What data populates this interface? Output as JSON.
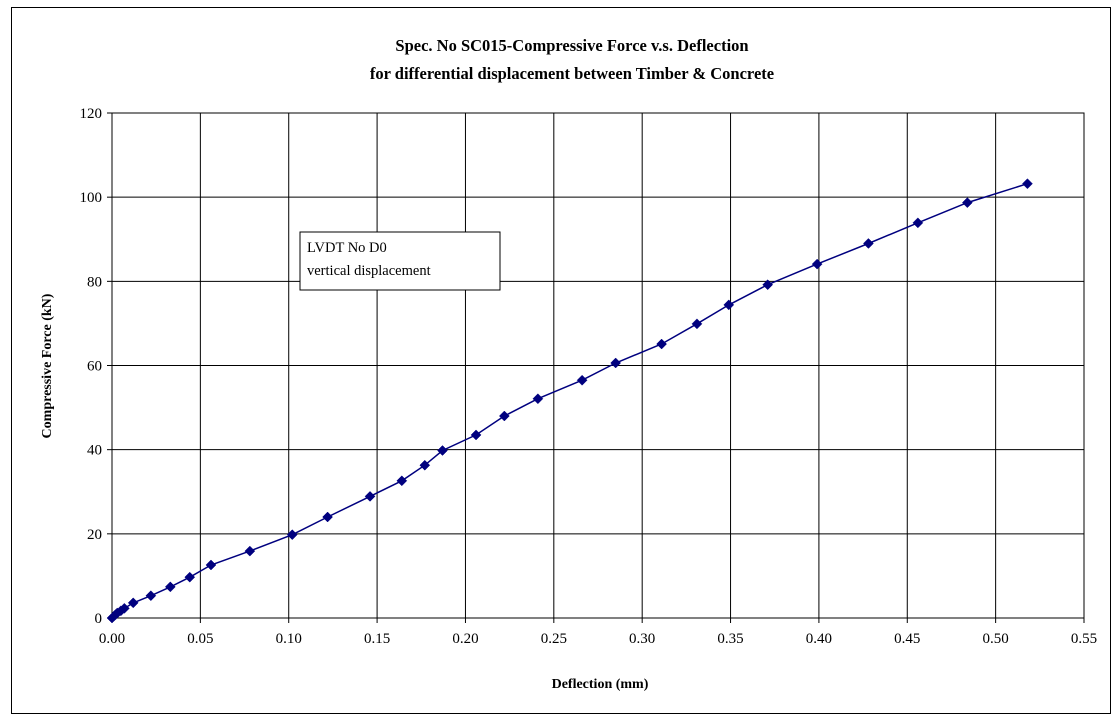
{
  "chart_data": {
    "type": "scatter",
    "title_line1": "Spec. No SC015-Compressive Force v.s. Deflection",
    "title_line2": "for differential displacement between Timber & Concrete",
    "xlabel": "Deflection (mm)",
    "ylabel": "Compressive Force (kN)",
    "xlim": [
      0,
      0.55
    ],
    "ylim": [
      0,
      120
    ],
    "x_ticks": [
      "0.00",
      "0.05",
      "0.10",
      "0.15",
      "0.20",
      "0.25",
      "0.30",
      "0.35",
      "0.40",
      "0.45",
      "0.50",
      "0.55"
    ],
    "y_ticks": [
      "0",
      "20",
      "40",
      "60",
      "80",
      "100",
      "120"
    ],
    "grid": true,
    "legend": "none",
    "annotation": {
      "line1": "LVDT No D0",
      "line2": "vertical displacement",
      "anchor_x": 0.077,
      "anchor_y": 91
    },
    "series": [
      {
        "color": "#00007f",
        "marker": "diamond",
        "points": [
          [
            0.0,
            0.0
          ],
          [
            0.001,
            0.4
          ],
          [
            0.002,
            0.8
          ],
          [
            0.003,
            1.2
          ],
          [
            0.005,
            1.7
          ],
          [
            0.007,
            2.3
          ],
          [
            0.012,
            3.6
          ],
          [
            0.022,
            5.3
          ],
          [
            0.033,
            7.4
          ],
          [
            0.044,
            9.7
          ],
          [
            0.056,
            12.6
          ],
          [
            0.078,
            15.9
          ],
          [
            0.102,
            19.8
          ],
          [
            0.122,
            24.0
          ],
          [
            0.146,
            28.9
          ],
          [
            0.164,
            32.6
          ],
          [
            0.177,
            36.3
          ],
          [
            0.187,
            39.8
          ],
          [
            0.206,
            43.5
          ],
          [
            0.222,
            48.0
          ],
          [
            0.241,
            52.1
          ],
          [
            0.266,
            56.5
          ],
          [
            0.285,
            60.6
          ],
          [
            0.311,
            65.1
          ],
          [
            0.331,
            69.9
          ],
          [
            0.349,
            74.4
          ],
          [
            0.371,
            79.2
          ],
          [
            0.399,
            84.1
          ],
          [
            0.428,
            89.0
          ],
          [
            0.456,
            93.9
          ],
          [
            0.484,
            98.7
          ],
          [
            0.518,
            103.2
          ]
        ]
      }
    ]
  }
}
